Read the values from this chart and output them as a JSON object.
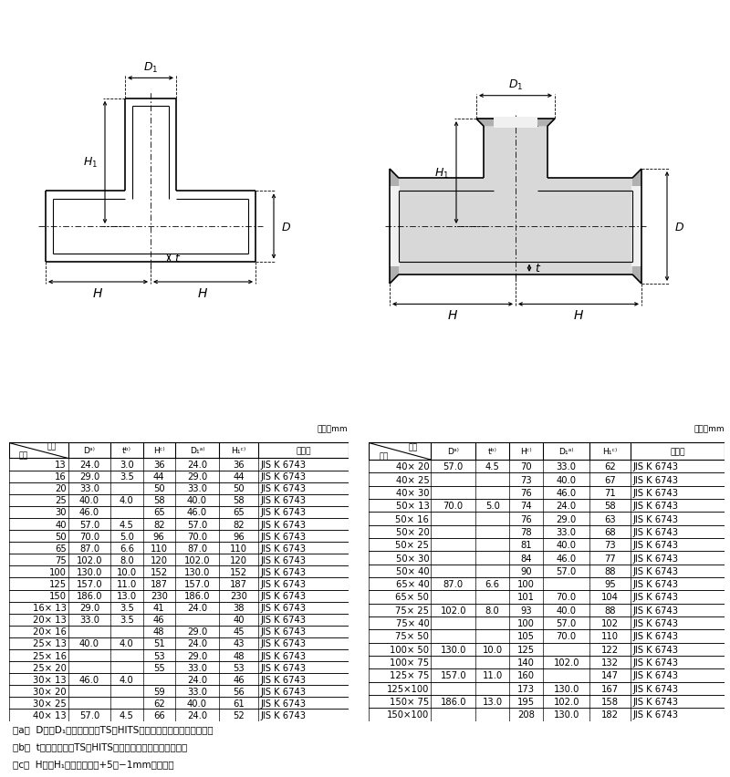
{
  "table1_rows": [
    [
      "13",
      "24.0",
      "3.0",
      "36",
      "24.0",
      "36",
      "JIS K 6743"
    ],
    [
      "16",
      "29.0",
      "3.5",
      "44",
      "29.0",
      "44",
      "JIS K 6743"
    ],
    [
      "20",
      "33.0",
      "",
      "50",
      "33.0",
      "50",
      "JIS K 6743"
    ],
    [
      "25",
      "40.0",
      "4.0",
      "58",
      "40.0",
      "58",
      "JIS K 6743"
    ],
    [
      "30",
      "46.0",
      "",
      "65",
      "46.0",
      "65",
      "JIS K 6743"
    ],
    [
      "40",
      "57.0",
      "4.5",
      "82",
      "57.0",
      "82",
      "JIS K 6743"
    ],
    [
      "50",
      "70.0",
      "5.0",
      "96",
      "70.0",
      "96",
      "JIS K 6743"
    ],
    [
      "65",
      "87.0",
      "6.6",
      "110",
      "87.0",
      "110",
      "JIS K 6743"
    ],
    [
      "75",
      "102.0",
      "8.0",
      "120",
      "102.0",
      "120",
      "JIS K 6743"
    ],
    [
      "100",
      "130.0",
      "10.0",
      "152",
      "130.0",
      "152",
      "JIS K 6743"
    ],
    [
      "125",
      "157.0",
      "11.0",
      "187",
      "157.0",
      "187",
      "JIS K 6743"
    ],
    [
      "150",
      "186.0",
      "13.0",
      "230",
      "186.0",
      "230",
      "JIS K 6743"
    ],
    [
      "16× 13",
      "29.0",
      "3.5",
      "41",
      "24.0",
      "38",
      "JIS K 6743"
    ],
    [
      "20× 13",
      "33.0",
      "3.5",
      "46",
      "",
      "40",
      "JIS K 6743"
    ],
    [
      "20× 16",
      "",
      "",
      "48",
      "29.0",
      "45",
      "JIS K 6743"
    ],
    [
      "25× 13",
      "40.0",
      "4.0",
      "51",
      "24.0",
      "43",
      "JIS K 6743"
    ],
    [
      "25× 16",
      "",
      "",
      "53",
      "29.0",
      "48",
      "JIS K 6743"
    ],
    [
      "25× 20",
      "",
      "",
      "55",
      "33.0",
      "53",
      "JIS K 6743"
    ],
    [
      "30× 13",
      "46.0",
      "4.0",
      "",
      "24.0",
      "46",
      "JIS K 6743"
    ],
    [
      "30× 20",
      "",
      "",
      "59",
      "33.0",
      "56",
      "JIS K 6743"
    ],
    [
      "30× 25",
      "",
      "",
      "62",
      "40.0",
      "61",
      "JIS K 6743"
    ],
    [
      "40× 13",
      "57.0",
      "4.5",
      "66",
      "24.0",
      "52",
      "JIS K 6743"
    ]
  ],
  "table2_rows": [
    [
      "40× 20",
      "57.0",
      "4.5",
      "70",
      "33.0",
      "62",
      "JIS K 6743"
    ],
    [
      "40× 25",
      "",
      "",
      "73",
      "40.0",
      "67",
      "JIS K 6743"
    ],
    [
      "40× 30",
      "",
      "",
      "76",
      "46.0",
      "71",
      "JIS K 6743"
    ],
    [
      "50× 13",
      "70.0",
      "5.0",
      "74",
      "24.0",
      "58",
      "JIS K 6743"
    ],
    [
      "50× 16",
      "",
      "",
      "76",
      "29.0",
      "63",
      "JIS K 6743"
    ],
    [
      "50× 20",
      "",
      "",
      "78",
      "33.0",
      "68",
      "JIS K 6743"
    ],
    [
      "50× 25",
      "",
      "",
      "81",
      "40.0",
      "73",
      "JIS K 6743"
    ],
    [
      "50× 30",
      "",
      "",
      "84",
      "46.0",
      "77",
      "JIS K 6743"
    ],
    [
      "50× 40",
      "",
      "",
      "90",
      "57.0",
      "88",
      "JIS K 6743"
    ],
    [
      "65× 40",
      "87.0",
      "6.6",
      "100",
      "",
      "95",
      "JIS K 6743"
    ],
    [
      "65× 50",
      "",
      "",
      "101",
      "70.0",
      "104",
      "JIS K 6743"
    ],
    [
      "75× 25",
      "102.0",
      "8.0",
      "93",
      "40.0",
      "88",
      "JIS K 6743"
    ],
    [
      "75× 40",
      "",
      "",
      "100",
      "57.0",
      "102",
      "JIS K 6743"
    ],
    [
      "75× 50",
      "",
      "",
      "105",
      "70.0",
      "110",
      "JIS K 6743"
    ],
    [
      "100× 50",
      "130.0",
      "10.0",
      "125",
      "",
      "122",
      "JIS K 6743"
    ],
    [
      "100× 75",
      "",
      "",
      "140",
      "102.0",
      "132",
      "JIS K 6743"
    ],
    [
      "125× 75",
      "157.0",
      "11.0",
      "160",
      "",
      "147",
      "JIS K 6743"
    ],
    [
      "125×100",
      "",
      "",
      "173",
      "130.0",
      "167",
      "JIS K 6743"
    ],
    [
      "150× 75",
      "186.0",
      "13.0",
      "195",
      "102.0",
      "158",
      "JIS K 6743"
    ],
    [
      "150×100",
      "",
      "",
      "208",
      "130.0",
      "182",
      "JIS K 6743"
    ]
  ],
  "notes": [
    "注a）  D及びD₁の許容差は、TS・HITS継手受口共通寸法図による。",
    "注b）  tの許容差は、TS・HITS継手受口共通寸法図による。",
    "注c）  H及びH₁の許容差は、+5／−1mmとする。"
  ]
}
